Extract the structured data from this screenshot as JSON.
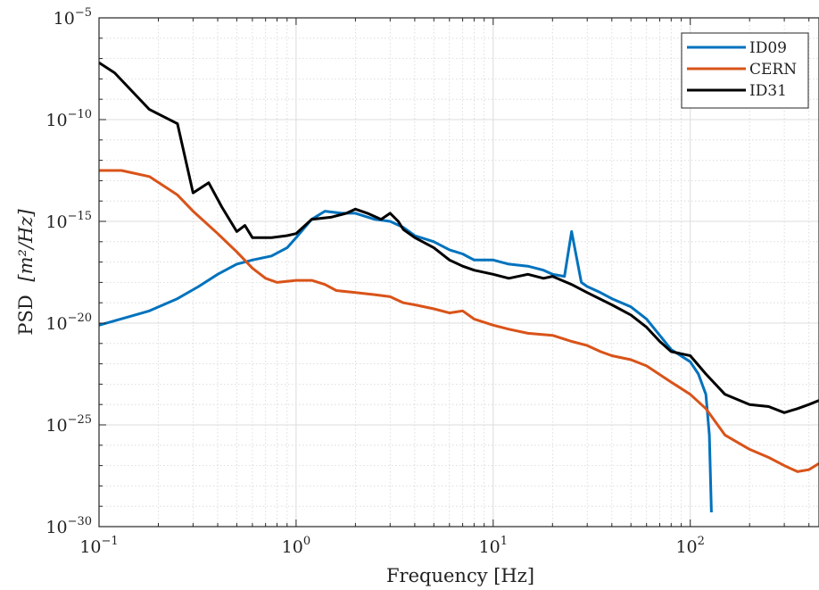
{
  "chart_data": {
    "type": "line",
    "xlabel": "Frequency [Hz]",
    "ylabel_text": "PSD",
    "ylabel_unit": "[m²/Hz]",
    "x_scale": "log",
    "y_scale": "log",
    "xlim": [
      0.1,
      450
    ],
    "ylim": [
      1e-30,
      1e-05
    ],
    "grid": true,
    "legend_position": "top-right",
    "x_ticks": [
      {
        "base": "10",
        "exp": "−1",
        "value": 0.1
      },
      {
        "base": "10",
        "exp": "0",
        "value": 1
      },
      {
        "base": "10",
        "exp": "1",
        "value": 10
      },
      {
        "base": "10",
        "exp": "2",
        "value": 100
      }
    ],
    "y_ticks": [
      {
        "base": "10",
        "exp": "−5",
        "value": -5
      },
      {
        "base": "10",
        "exp": "−10",
        "value": -10
      },
      {
        "base": "10",
        "exp": "−15",
        "value": -15
      },
      {
        "base": "10",
        "exp": "−20",
        "value": -20
      },
      {
        "base": "10",
        "exp": "−25",
        "value": -25
      },
      {
        "base": "10",
        "exp": "−30",
        "value": -30
      }
    ],
    "series": [
      {
        "name": "ID09",
        "color": "#0072BD",
        "x": [
          0.1,
          0.14,
          0.18,
          0.25,
          0.32,
          0.4,
          0.5,
          0.6,
          0.75,
          0.9,
          1.0,
          1.2,
          1.4,
          1.7,
          2.0,
          2.5,
          3.0,
          3.5,
          4,
          5,
          6,
          7,
          8,
          10,
          12,
          15,
          18,
          20,
          23,
          25,
          28,
          30,
          35,
          40,
          50,
          60,
          70,
          80,
          100,
          110,
          120,
          125,
          128
        ],
        "y": [
          -20.1,
          -19.7,
          -19.4,
          -18.8,
          -18.2,
          -17.6,
          -17.1,
          -16.9,
          -16.7,
          -16.3,
          -15.8,
          -14.9,
          -14.5,
          -14.6,
          -14.6,
          -14.9,
          -15.0,
          -15.3,
          -15.7,
          -16.0,
          -16.4,
          -16.6,
          -16.9,
          -16.9,
          -17.1,
          -17.2,
          -17.4,
          -17.6,
          -17.7,
          -15.5,
          -18.0,
          -18.2,
          -18.5,
          -18.8,
          -19.2,
          -19.8,
          -20.6,
          -21.3,
          -21.9,
          -22.5,
          -23.5,
          -25.5,
          -29.3
        ]
      },
      {
        "name": "CERN",
        "color": "#D95319",
        "x": [
          0.1,
          0.13,
          0.18,
          0.25,
          0.3,
          0.4,
          0.5,
          0.6,
          0.7,
          0.8,
          1.0,
          1.2,
          1.4,
          1.6,
          2.0,
          2.5,
          3.0,
          3.5,
          4,
          5,
          6,
          7,
          8,
          10,
          12,
          15,
          20,
          25,
          30,
          35,
          40,
          50,
          60,
          80,
          100,
          120,
          150,
          200,
          250,
          300,
          350,
          400,
          450
        ],
        "y": [
          -12.5,
          -12.5,
          -12.8,
          -13.7,
          -14.5,
          -15.6,
          -16.5,
          -17.3,
          -17.8,
          -18.0,
          -17.9,
          -17.9,
          -18.1,
          -18.4,
          -18.5,
          -18.6,
          -18.7,
          -19.0,
          -19.1,
          -19.3,
          -19.5,
          -19.4,
          -19.8,
          -20.1,
          -20.3,
          -20.5,
          -20.6,
          -20.9,
          -21.1,
          -21.4,
          -21.6,
          -21.8,
          -22.1,
          -22.9,
          -23.5,
          -24.2,
          -25.5,
          -26.2,
          -26.6,
          -27.0,
          -27.3,
          -27.2,
          -26.9
        ]
      },
      {
        "name": "ID31",
        "color": "#000000",
        "x": [
          0.1,
          0.12,
          0.18,
          0.25,
          0.3,
          0.36,
          0.42,
          0.5,
          0.55,
          0.6,
          0.75,
          0.9,
          1.0,
          1.2,
          1.5,
          1.8,
          2.0,
          2.3,
          2.7,
          3.0,
          3.3,
          3.5,
          4,
          5,
          6,
          7,
          8,
          10,
          12,
          15,
          18,
          20,
          25,
          30,
          40,
          50,
          60,
          70,
          80,
          100,
          120,
          150,
          200,
          250,
          300,
          350,
          400,
          450
        ],
        "y": [
          -7.2,
          -7.7,
          -9.5,
          -10.2,
          -13.6,
          -13.1,
          -14.3,
          -15.5,
          -15.2,
          -15.8,
          -15.8,
          -15.7,
          -15.6,
          -14.9,
          -14.8,
          -14.6,
          -14.4,
          -14.6,
          -14.9,
          -14.6,
          -15.0,
          -15.4,
          -15.8,
          -16.3,
          -16.9,
          -17.2,
          -17.4,
          -17.6,
          -17.8,
          -17.6,
          -17.8,
          -17.7,
          -18.1,
          -18.5,
          -19.1,
          -19.6,
          -20.2,
          -20.9,
          -21.4,
          -21.6,
          -22.5,
          -23.5,
          -24.0,
          -24.1,
          -24.4,
          -24.2,
          -24.0,
          -23.8
        ]
      }
    ]
  }
}
